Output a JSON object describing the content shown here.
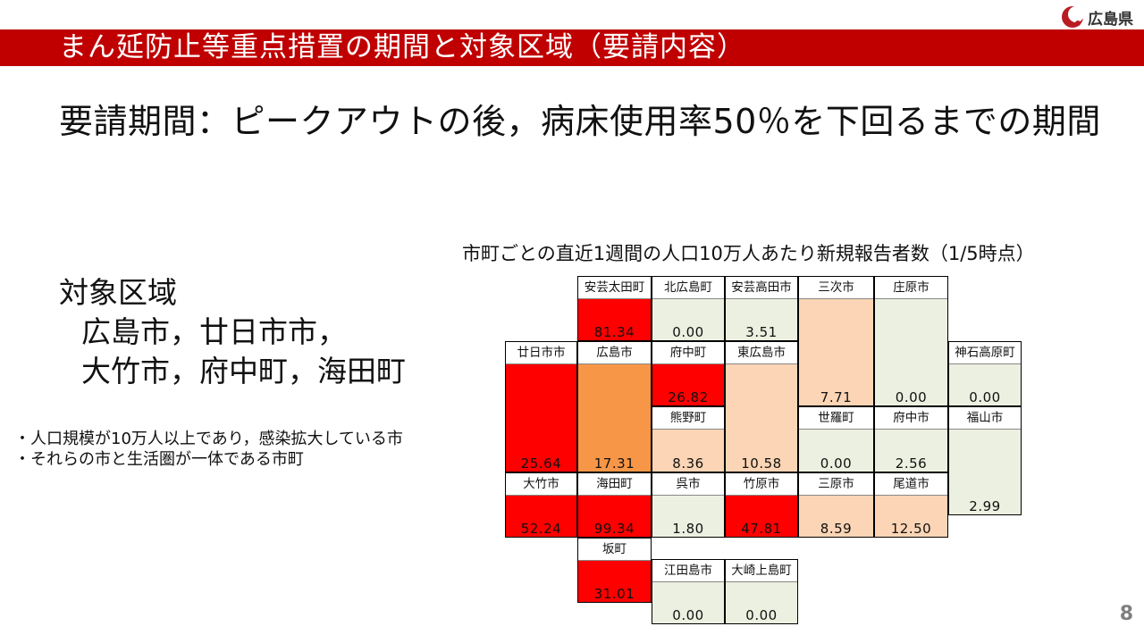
{
  "logo": {
    "text": "広島県",
    "color": "#b81c22"
  },
  "title": "まん延防止等重点措置の期間と対象区域（要請内容）",
  "subtitle": "要請期間：ピークアウトの後，病床使用率50％を下回るまでの期間",
  "target": {
    "heading": "対象区域",
    "line1": "広島市，廿日市市，",
    "line2": "大竹市，府中町，海田町"
  },
  "notes": [
    "・人口規模が10万人以上であり，感染拡大している市",
    "・それらの市と生活圏が一体である市町"
  ],
  "map": {
    "caption": "市町ごとの直近1週間の人口10万人あたり新規報告者数（1/5時点）",
    "colors": {
      "red": "#fe0000",
      "orange": "#f79646",
      "peach": "#fbd5b5",
      "green": "#ecf0e0"
    },
    "cells": [
      {
        "name": "安芸太田町",
        "value": "81.34",
        "color": "red"
      },
      {
        "name": "北広島町",
        "value": "0.00",
        "color": "green"
      },
      {
        "name": "安芸高田市",
        "value": "3.51",
        "color": "green"
      },
      {
        "name": "三次市",
        "value": "7.71",
        "color": "peach"
      },
      {
        "name": "庄原市",
        "value": "0.00",
        "color": "green"
      },
      {
        "name": "廿日市市",
        "value": "25.64",
        "color": "red"
      },
      {
        "name": "広島市",
        "value": "17.31",
        "color": "orange"
      },
      {
        "name": "府中町",
        "value": "26.82",
        "color": "red"
      },
      {
        "name": "東広島市",
        "value": "10.58",
        "color": "peach"
      },
      {
        "name": "神石高原町",
        "value": "0.00",
        "color": "green"
      },
      {
        "name": "熊野町",
        "value": "8.36",
        "color": "peach"
      },
      {
        "name": "世羅町",
        "value": "0.00",
        "color": "green"
      },
      {
        "name": "府中市",
        "value": "2.56",
        "color": "green"
      },
      {
        "name": "福山市",
        "value": "2.99",
        "color": "green"
      },
      {
        "name": "大竹市",
        "value": "52.24",
        "color": "red"
      },
      {
        "name": "海田町",
        "value": "99.34",
        "color": "red"
      },
      {
        "name": "呉市",
        "value": "1.80",
        "color": "green"
      },
      {
        "name": "竹原市",
        "value": "47.81",
        "color": "red"
      },
      {
        "name": "三原市",
        "value": "8.59",
        "color": "peach"
      },
      {
        "name": "尾道市",
        "value": "12.50",
        "color": "peach"
      },
      {
        "name": "坂町",
        "value": "31.01",
        "color": "red"
      },
      {
        "name": "江田島市",
        "value": "0.00",
        "color": "green"
      },
      {
        "name": "大崎上島町",
        "value": "0.00",
        "color": "green"
      }
    ]
  },
  "page_number": "8"
}
